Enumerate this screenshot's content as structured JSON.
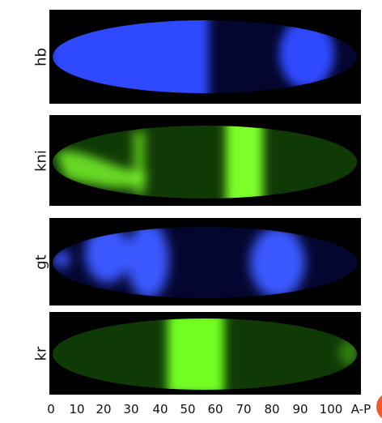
{
  "panels": [
    {
      "label": "hb",
      "color": "#2f49ff",
      "stripes": [
        [
          0,
          50
        ],
        [
          85,
          95
        ]
      ]
    },
    {
      "label": "kni",
      "color": "#7dff2a",
      "stripes": [
        [
          5,
          28
        ],
        [
          60,
          74
        ]
      ]
    },
    {
      "label": "gt",
      "color": "#3a59ff",
      "stripes": [
        [
          10,
          18
        ],
        [
          25,
          36
        ],
        [
          75,
          90
        ]
      ]
    },
    {
      "label": "kr",
      "color": "#72ff20",
      "stripes": [
        [
          38,
          57
        ]
      ]
    }
  ],
  "axis": {
    "ticks": [
      "0",
      "10",
      "20",
      "30",
      "40",
      "50",
      "60",
      "70",
      "80",
      "90",
      "100"
    ],
    "end_label": "A-P"
  },
  "colors": {
    "blue_background": "#04062f",
    "green_background": "#0f3a06",
    "badge": "#f05a2a"
  }
}
